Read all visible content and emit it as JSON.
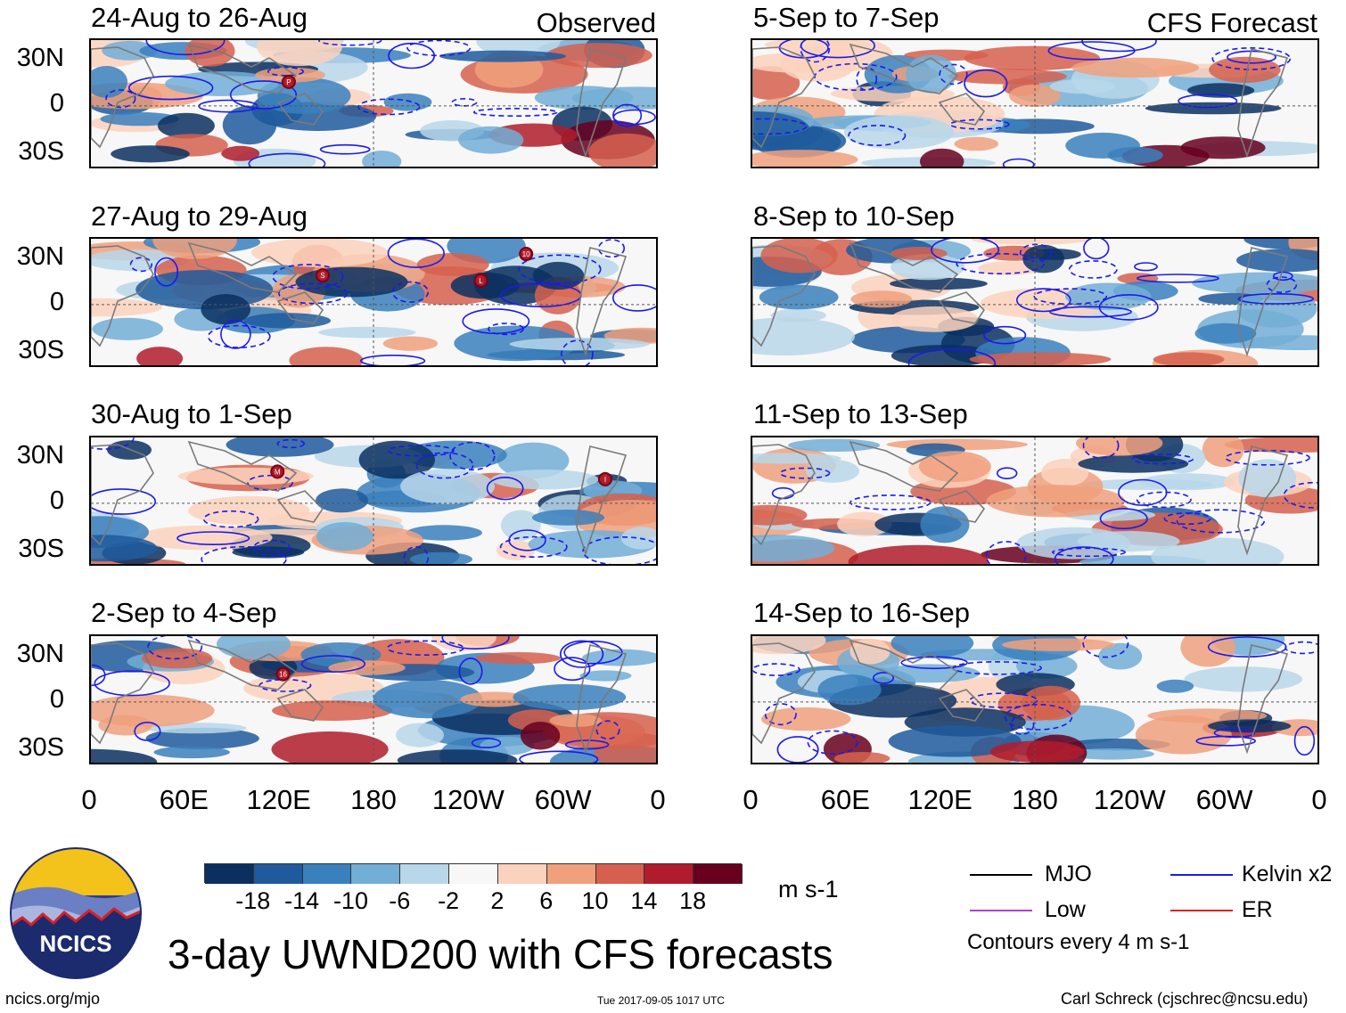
{
  "labels": {
    "observed": "Observed",
    "forecast": "CFS Forecast"
  },
  "panels_left": [
    {
      "title": "24-Aug to 26-Aug"
    },
    {
      "title": "27-Aug to 29-Aug"
    },
    {
      "title": "30-Aug to 1-Sep"
    },
    {
      "title": "2-Sep to 4-Sep"
    }
  ],
  "panels_right": [
    {
      "title": "5-Sep to 7-Sep"
    },
    {
      "title": "8-Sep to 10-Sep"
    },
    {
      "title": "11-Sep to 13-Sep"
    },
    {
      "title": "14-Sep to 16-Sep"
    }
  ],
  "lat_labels": [
    "30N",
    "0",
    "30S"
  ],
  "lon_labels": [
    "0",
    "60E",
    "120E",
    "180",
    "120W",
    "60W",
    "0"
  ],
  "storm_markers": [
    {
      "panel": 0,
      "label": "P"
    },
    {
      "panel": 1,
      "label": "S"
    },
    {
      "panel": 1,
      "label": "L"
    },
    {
      "panel": 1,
      "label": "10"
    },
    {
      "panel": 2,
      "label": "M"
    },
    {
      "panel": 2,
      "label": "I"
    },
    {
      "panel": 3,
      "label": "16"
    }
  ],
  "colorbar": {
    "ticks": [
      "-18",
      "-14",
      "-10",
      "-6",
      "-2",
      "2",
      "6",
      "10",
      "14",
      "18"
    ],
    "colors": [
      "#0b3060",
      "#1f5a9c",
      "#3a80bd",
      "#72aed6",
      "#b8d7ea",
      "#f7f7f7",
      "#fbd2bd",
      "#f0a07c",
      "#d6604d",
      "#b01c2c",
      "#67001f"
    ],
    "units": "m s-1"
  },
  "legend": {
    "mjo": "MJO",
    "kelvin": "Kelvin x2",
    "low": "Low",
    "er": "ER",
    "contours_note": "Contours every 4 m s-1",
    "colors": {
      "mjo": "#000000",
      "kelvin": "#1a1aee",
      "low": "#b040c8",
      "er": "#e02020"
    }
  },
  "logo": {
    "text": "NCICS"
  },
  "main_title": "3-day UWND200 with CFS forecasts",
  "footer": {
    "url": "ncics.org/mjo",
    "timestamp": "Tue 2017-09-05 1017 UTC",
    "credit": "Carl Schreck (cjschrec@ncsu.edu)"
  }
}
